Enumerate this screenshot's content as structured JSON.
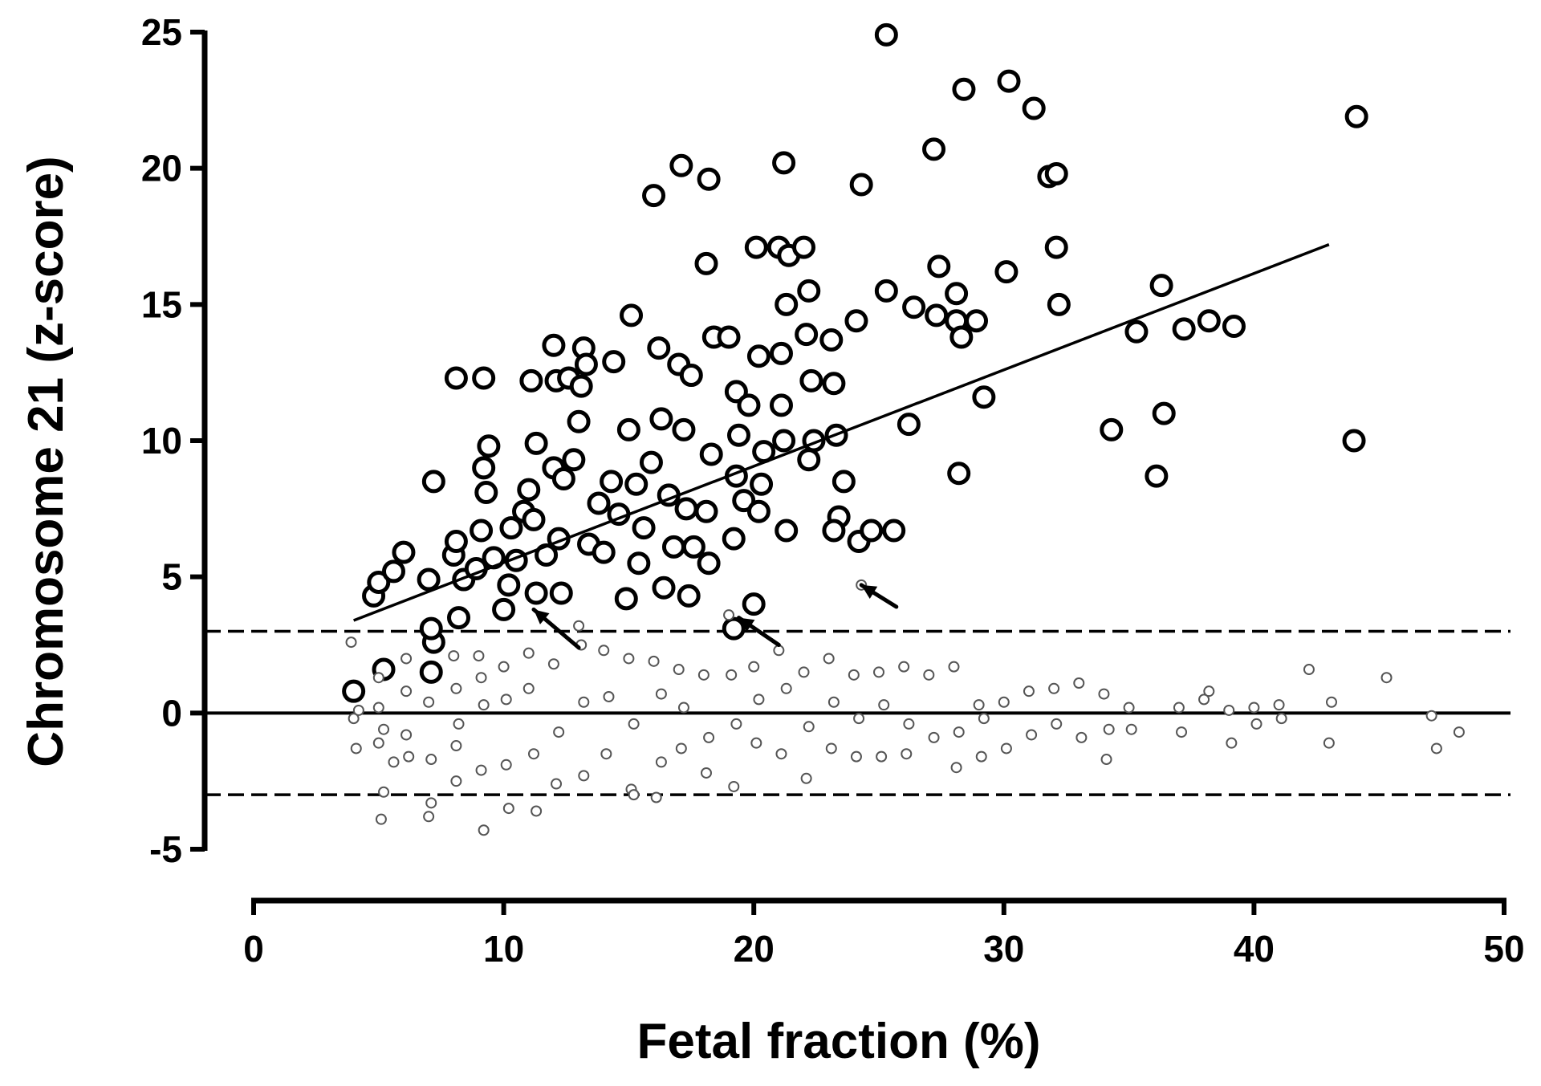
{
  "chart_data": {
    "type": "scatter",
    "xlabel": "Fetal fraction (%)",
    "ylabel": "Chromosome 21 (z-score)",
    "xlim": [
      0,
      50
    ],
    "ylim": [
      -5,
      25
    ],
    "x_ticks": [
      0,
      10,
      20,
      30,
      40,
      50
    ],
    "y_ticks": [
      -5,
      0,
      5,
      10,
      15,
      20,
      25
    ],
    "grid": false,
    "reference_lines": [
      {
        "style": "solid",
        "y": 0
      },
      {
        "style": "dashed",
        "y": 3
      },
      {
        "style": "dashed",
        "y": -3
      }
    ],
    "trend_line": {
      "x": [
        4,
        43
      ],
      "y": [
        3.4,
        17.2
      ]
    },
    "arrows": [
      {
        "from": [
          13,
          2.4
        ],
        "to": [
          11.2,
          3.8
        ]
      },
      {
        "from": [
          21,
          2.5
        ],
        "to": [
          19.4,
          3.5
        ]
      },
      {
        "from": [
          25.7,
          3.9
        ],
        "to": [
          24.3,
          4.7
        ]
      }
    ],
    "series": [
      {
        "style": "large open circles",
        "points": [
          [
            4,
            0.8
          ],
          [
            5.2,
            1.6
          ],
          [
            7.1,
            1.5
          ],
          [
            7.2,
            2.6
          ],
          [
            7.1,
            3.1
          ],
          [
            8.2,
            3.5
          ],
          [
            10,
            3.8
          ],
          [
            11.3,
            4.4
          ],
          [
            12.3,
            4.4
          ],
          [
            4.8,
            4.3
          ],
          [
            5,
            4.8
          ],
          [
            5.6,
            5.2
          ],
          [
            6,
            5.9
          ],
          [
            7,
            4.9
          ],
          [
            7.2,
            8.5
          ],
          [
            8,
            5.8
          ],
          [
            8.1,
            6.3
          ],
          [
            8.1,
            12.3
          ],
          [
            8.4,
            4.9
          ],
          [
            8.9,
            5.3
          ],
          [
            9.1,
            6.7
          ],
          [
            9.2,
            9
          ],
          [
            9.3,
            8.1
          ],
          [
            9.4,
            9.8
          ],
          [
            9.2,
            12.3
          ],
          [
            9.6,
            5.7
          ],
          [
            10.3,
            6.8
          ],
          [
            10.5,
            5.6
          ],
          [
            10.8,
            7.4
          ],
          [
            10.2,
            4.7
          ],
          [
            11,
            8.2
          ],
          [
            11.2,
            7.1
          ],
          [
            11.3,
            9.9
          ],
          [
            11.1,
            12.2
          ],
          [
            11.7,
            5.8
          ],
          [
            12,
            9
          ],
          [
            12.1,
            12.2
          ],
          [
            12.2,
            6.4
          ],
          [
            12.4,
            8.6
          ],
          [
            12,
            13.5
          ],
          [
            12.6,
            12.3
          ],
          [
            12.8,
            9.3
          ],
          [
            13.1,
            12
          ],
          [
            13.2,
            13.4
          ],
          [
            13,
            10.7
          ],
          [
            13.3,
            12.8
          ],
          [
            13.4,
            6.2
          ],
          [
            13.8,
            7.7
          ],
          [
            14,
            5.9
          ],
          [
            14.3,
            8.5
          ],
          [
            14.4,
            12.9
          ],
          [
            14.6,
            7.3
          ],
          [
            14.9,
            4.2
          ],
          [
            15.1,
            14.6
          ],
          [
            15,
            10.4
          ],
          [
            15.3,
            8.4
          ],
          [
            15.4,
            5.5
          ],
          [
            15.6,
            6.8
          ],
          [
            15.9,
            9.2
          ],
          [
            16,
            19
          ],
          [
            16.2,
            13.4
          ],
          [
            16.3,
            10.8
          ],
          [
            16.4,
            4.6
          ],
          [
            16.6,
            8
          ],
          [
            16.8,
            6.1
          ],
          [
            17.1,
            20.1
          ],
          [
            17,
            12.8
          ],
          [
            17.2,
            10.4
          ],
          [
            17.3,
            7.5
          ],
          [
            17.4,
            4.3
          ],
          [
            17.5,
            12.4
          ],
          [
            17.6,
            6.1
          ],
          [
            18.1,
            16.5
          ],
          [
            18.2,
            19.6
          ],
          [
            18.3,
            9.5
          ],
          [
            18.4,
            13.8
          ],
          [
            18.1,
            7.4
          ],
          [
            18.2,
            5.5
          ],
          [
            19,
            13.8
          ],
          [
            19.2,
            6.4
          ],
          [
            19.3,
            11.8
          ],
          [
            19.4,
            10.2
          ],
          [
            19.3,
            8.7
          ],
          [
            19.6,
            7.8
          ],
          [
            19.8,
            11.3
          ],
          [
            19.2,
            3.1
          ],
          [
            20,
            4
          ],
          [
            20.1,
            17.1
          ],
          [
            20.2,
            13.1
          ],
          [
            20.3,
            8.4
          ],
          [
            20.4,
            9.6
          ],
          [
            20.2,
            7.4
          ],
          [
            21,
            17.1
          ],
          [
            21.1,
            11.3
          ],
          [
            21.2,
            20.2
          ],
          [
            21.3,
            15
          ],
          [
            21.1,
            13.2
          ],
          [
            21.3,
            6.7
          ],
          [
            21.2,
            10
          ],
          [
            21.4,
            16.8
          ],
          [
            22,
            17.1
          ],
          [
            22.2,
            15.5
          ],
          [
            22.1,
            13.9
          ],
          [
            22.3,
            12.2
          ],
          [
            22.4,
            10
          ],
          [
            22.2,
            9.3
          ],
          [
            23.1,
            13.7
          ],
          [
            23.2,
            12.1
          ],
          [
            23.3,
            10.2
          ],
          [
            23.4,
            7.2
          ],
          [
            23.2,
            6.7
          ],
          [
            23.6,
            8.5
          ],
          [
            24.1,
            14.4
          ],
          [
            24.2,
            6.3
          ],
          [
            24.3,
            19.4
          ],
          [
            24.7,
            6.7
          ],
          [
            25.3,
            15.5
          ],
          [
            25.6,
            6.7
          ],
          [
            25.3,
            24.9
          ],
          [
            26.2,
            10.6
          ],
          [
            26.4,
            14.9
          ],
          [
            27.2,
            20.7
          ],
          [
            27.3,
            14.6
          ],
          [
            27.4,
            16.4
          ],
          [
            28.1,
            15.4
          ],
          [
            28.1,
            14.4
          ],
          [
            28.3,
            13.8
          ],
          [
            28.2,
            8.8
          ],
          [
            28.4,
            22.9
          ],
          [
            28.9,
            14.4
          ],
          [
            29.2,
            11.6
          ],
          [
            30.1,
            16.2
          ],
          [
            30.2,
            23.2
          ],
          [
            31.2,
            22.2
          ],
          [
            31.8,
            19.7
          ],
          [
            32.1,
            19.8
          ],
          [
            32.1,
            17.1
          ],
          [
            32.2,
            15
          ],
          [
            34.3,
            10.4
          ],
          [
            35.3,
            14
          ],
          [
            36.1,
            8.7
          ],
          [
            36.3,
            15.7
          ],
          [
            36.4,
            11
          ],
          [
            37.2,
            14.1
          ],
          [
            38.2,
            14.4
          ],
          [
            39.2,
            14.2
          ],
          [
            44,
            10
          ],
          [
            44.1,
            21.9
          ]
        ]
      },
      {
        "style": "small open circles",
        "points": [
          [
            3.9,
            2.6
          ],
          [
            4,
            -0.2
          ],
          [
            4.1,
            -1.3
          ],
          [
            4.2,
            0.1
          ],
          [
            5,
            1.3
          ],
          [
            5,
            -1.1
          ],
          [
            5,
            0.2
          ],
          [
            5.2,
            -2.9
          ],
          [
            5.1,
            -3.9
          ],
          [
            5.2,
            -0.6
          ],
          [
            5.6,
            -1.8
          ],
          [
            6.1,
            2
          ],
          [
            6.1,
            -0.8
          ],
          [
            6.2,
            -1.6
          ],
          [
            6.1,
            0.8
          ],
          [
            7,
            -3.8
          ],
          [
            7.1,
            -3.3
          ],
          [
            7,
            0.4
          ],
          [
            7.1,
            -1.7
          ],
          [
            8,
            2.1
          ],
          [
            8.1,
            -2.5
          ],
          [
            8.1,
            -1.2
          ],
          [
            8.1,
            0.9
          ],
          [
            8.2,
            -0.4
          ],
          [
            9,
            2.1
          ],
          [
            9.1,
            -2.1
          ],
          [
            9.2,
            -4.3
          ],
          [
            9.2,
            0.3
          ],
          [
            9.1,
            1.3
          ],
          [
            10,
            1.7
          ],
          [
            10.1,
            -1.9
          ],
          [
            10.2,
            -3.5
          ],
          [
            10.1,
            0.5
          ],
          [
            11,
            2.2
          ],
          [
            11.2,
            -1.5
          ],
          [
            11.3,
            -3.6
          ],
          [
            11,
            0.9
          ],
          [
            12,
            1.8
          ],
          [
            12.1,
            -2.6
          ],
          [
            12.2,
            -0.7
          ],
          [
            13,
            3.2
          ],
          [
            13.1,
            2.5
          ],
          [
            13.2,
            -2.3
          ],
          [
            13.2,
            0.4
          ],
          [
            14,
            2.3
          ],
          [
            14.1,
            -1.5
          ],
          [
            14.2,
            0.6
          ],
          [
            15,
            2
          ],
          [
            15.1,
            -2.8
          ],
          [
            15.2,
            -3
          ],
          [
            15.2,
            -0.4
          ],
          [
            16,
            1.9
          ],
          [
            16.1,
            -3.1
          ],
          [
            16.3,
            -1.8
          ],
          [
            16.3,
            0.7
          ],
          [
            17,
            1.6
          ],
          [
            17.1,
            -1.3
          ],
          [
            17.2,
            0.2
          ],
          [
            18,
            1.4
          ],
          [
            18.1,
            -2.2
          ],
          [
            18.2,
            -0.9
          ],
          [
            19,
            3.6
          ],
          [
            19.1,
            1.4
          ],
          [
            19.2,
            -2.7
          ],
          [
            19.3,
            -0.4
          ],
          [
            20,
            1.7
          ],
          [
            20.1,
            -1.1
          ],
          [
            20.2,
            0.5
          ],
          [
            21,
            2.3
          ],
          [
            21.1,
            -1.5
          ],
          [
            21.3,
            0.9
          ],
          [
            22,
            1.5
          ],
          [
            22.1,
            -2.4
          ],
          [
            22.2,
            -0.5
          ],
          [
            23,
            2
          ],
          [
            23.1,
            -1.3
          ],
          [
            23.2,
            0.4
          ],
          [
            24,
            1.4
          ],
          [
            24.1,
            -1.6
          ],
          [
            24.2,
            -0.2
          ],
          [
            24.3,
            4.7
          ],
          [
            25,
            1.5
          ],
          [
            25.1,
            -1.6
          ],
          [
            25.2,
            0.3
          ],
          [
            26,
            1.7
          ],
          [
            26.1,
            -1.5
          ],
          [
            26.2,
            -0.4
          ],
          [
            27,
            1.4
          ],
          [
            27.2,
            -0.9
          ],
          [
            28,
            1.7
          ],
          [
            28.1,
            -2
          ],
          [
            28.2,
            -0.7
          ],
          [
            29,
            0.3
          ],
          [
            29.1,
            -1.6
          ],
          [
            29.2,
            -0.2
          ],
          [
            30,
            0.4
          ],
          [
            30.1,
            -1.3
          ],
          [
            31,
            0.8
          ],
          [
            31.1,
            -0.8
          ],
          [
            32,
            0.9
          ],
          [
            32.1,
            -0.4
          ],
          [
            33,
            1.1
          ],
          [
            33.1,
            -0.9
          ],
          [
            34,
            0.7
          ],
          [
            34.1,
            -1.7
          ],
          [
            34.2,
            -0.6
          ],
          [
            35,
            0.2
          ],
          [
            35.1,
            -0.6
          ],
          [
            37,
            0.2
          ],
          [
            37.1,
            -0.7
          ],
          [
            38,
            0.5
          ],
          [
            38.2,
            0.8
          ],
          [
            39,
            0.1
          ],
          [
            39.1,
            -1.1
          ],
          [
            40,
            0.2
          ],
          [
            40.1,
            -0.4
          ],
          [
            41,
            0.3
          ],
          [
            41.1,
            -0.2
          ],
          [
            42.2,
            1.6
          ],
          [
            43.1,
            0.4
          ],
          [
            43,
            -1.1
          ],
          [
            45.3,
            1.3
          ],
          [
            47.1,
            -0.1
          ],
          [
            47.3,
            -1.3
          ],
          [
            48.2,
            -0.7
          ]
        ]
      }
    ]
  }
}
